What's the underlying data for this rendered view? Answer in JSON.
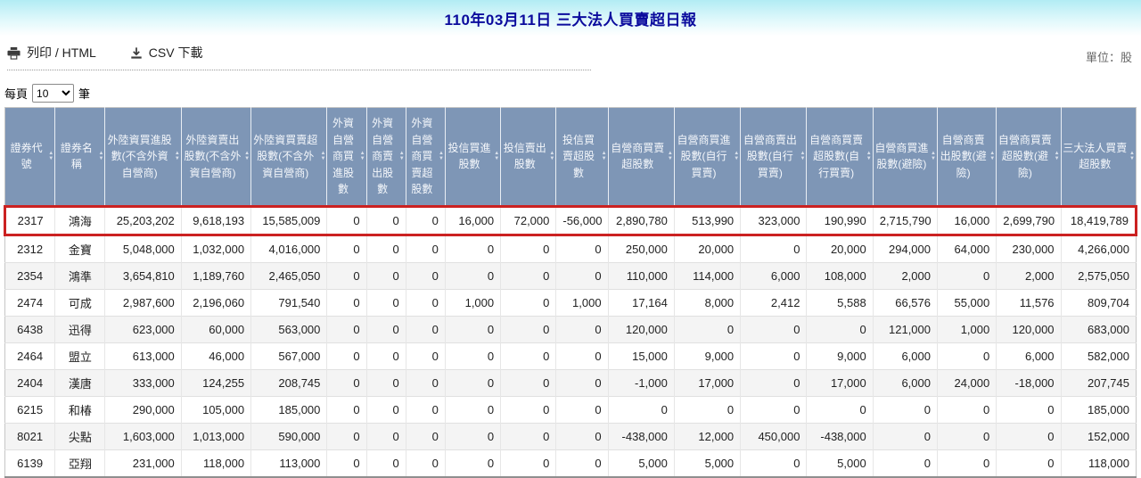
{
  "page": {
    "title": "110年03月11日 三大法人買賣超日報",
    "unit_label": "單位：股"
  },
  "toolbar": {
    "print_label": "列印 / HTML",
    "csv_label": "CSV 下載"
  },
  "pagination": {
    "per_page_prefix": "每頁",
    "per_page_value": "10",
    "per_page_suffix": "筆"
  },
  "colors": {
    "header_bg": "#7e96b6",
    "highlight_border": "#cb2121",
    "title_color": "#0b0b9d"
  },
  "icons": {
    "print": "printer-icon",
    "csv": "download-icon",
    "sort": "sort-arrows-icon"
  },
  "table": {
    "columns": [
      "證券代號",
      "證券名稱",
      "外陸資買進股數(不含外資自營商)",
      "外陸資賣出股數(不含外資自營商)",
      "外陸資買賣超股數(不含外資自營商)",
      "外資自營商買進股數",
      "外資自營商賣出股數",
      "外資自營商買賣超股數",
      "投信買進股數",
      "投信賣出股數",
      "投信買賣超股數",
      "自營商買賣超股數",
      "自營商買進股數(自行買賣)",
      "自營商賣出股數(自行買賣)",
      "自營商買賣超股數(自行買賣)",
      "自營商買進股數(避險)",
      "自營商賣出股數(避險)",
      "自營商買賣超股數(避險)",
      "三大法人買賣超股數"
    ],
    "rows": [
      {
        "code": "2317",
        "name": "鴻海",
        "highlighted": true,
        "values": [
          "25,203,202",
          "9,618,193",
          "15,585,009",
          "0",
          "0",
          "0",
          "16,000",
          "72,000",
          "-56,000",
          "2,890,780",
          "513,990",
          "323,000",
          "190,990",
          "2,715,790",
          "16,000",
          "2,699,790",
          "18,419,789"
        ]
      },
      {
        "code": "2312",
        "name": "金寶",
        "highlighted": false,
        "values": [
          "5,048,000",
          "1,032,000",
          "4,016,000",
          "0",
          "0",
          "0",
          "0",
          "0",
          "0",
          "250,000",
          "20,000",
          "0",
          "20,000",
          "294,000",
          "64,000",
          "230,000",
          "4,266,000"
        ]
      },
      {
        "code": "2354",
        "name": "鴻準",
        "highlighted": false,
        "values": [
          "3,654,810",
          "1,189,760",
          "2,465,050",
          "0",
          "0",
          "0",
          "0",
          "0",
          "0",
          "110,000",
          "114,000",
          "6,000",
          "108,000",
          "2,000",
          "0",
          "2,000",
          "2,575,050"
        ]
      },
      {
        "code": "2474",
        "name": "可成",
        "highlighted": false,
        "values": [
          "2,987,600",
          "2,196,060",
          "791,540",
          "0",
          "0",
          "0",
          "1,000",
          "0",
          "1,000",
          "17,164",
          "8,000",
          "2,412",
          "5,588",
          "66,576",
          "55,000",
          "11,576",
          "809,704"
        ]
      },
      {
        "code": "6438",
        "name": "迅得",
        "highlighted": false,
        "values": [
          "623,000",
          "60,000",
          "563,000",
          "0",
          "0",
          "0",
          "0",
          "0",
          "0",
          "120,000",
          "0",
          "0",
          "0",
          "121,000",
          "1,000",
          "120,000",
          "683,000"
        ]
      },
      {
        "code": "2464",
        "name": "盟立",
        "highlighted": false,
        "values": [
          "613,000",
          "46,000",
          "567,000",
          "0",
          "0",
          "0",
          "0",
          "0",
          "0",
          "15,000",
          "9,000",
          "0",
          "9,000",
          "6,000",
          "0",
          "6,000",
          "582,000"
        ]
      },
      {
        "code": "2404",
        "name": "漢唐",
        "highlighted": false,
        "values": [
          "333,000",
          "124,255",
          "208,745",
          "0",
          "0",
          "0",
          "0",
          "0",
          "0",
          "-1,000",
          "17,000",
          "0",
          "17,000",
          "6,000",
          "24,000",
          "-18,000",
          "207,745"
        ]
      },
      {
        "code": "6215",
        "name": "和椿",
        "highlighted": false,
        "values": [
          "290,000",
          "105,000",
          "185,000",
          "0",
          "0",
          "0",
          "0",
          "0",
          "0",
          "0",
          "0",
          "0",
          "0",
          "0",
          "0",
          "0",
          "185,000"
        ]
      },
      {
        "code": "8021",
        "name": "尖點",
        "highlighted": false,
        "values": [
          "1,603,000",
          "1,013,000",
          "590,000",
          "0",
          "0",
          "0",
          "0",
          "0",
          "0",
          "-438,000",
          "12,000",
          "450,000",
          "-438,000",
          "0",
          "0",
          "0",
          "152,000"
        ]
      },
      {
        "code": "6139",
        "name": "亞翔",
        "highlighted": false,
        "values": [
          "231,000",
          "118,000",
          "113,000",
          "0",
          "0",
          "0",
          "0",
          "0",
          "0",
          "5,000",
          "5,000",
          "0",
          "5,000",
          "0",
          "0",
          "0",
          "118,000"
        ]
      }
    ]
  }
}
